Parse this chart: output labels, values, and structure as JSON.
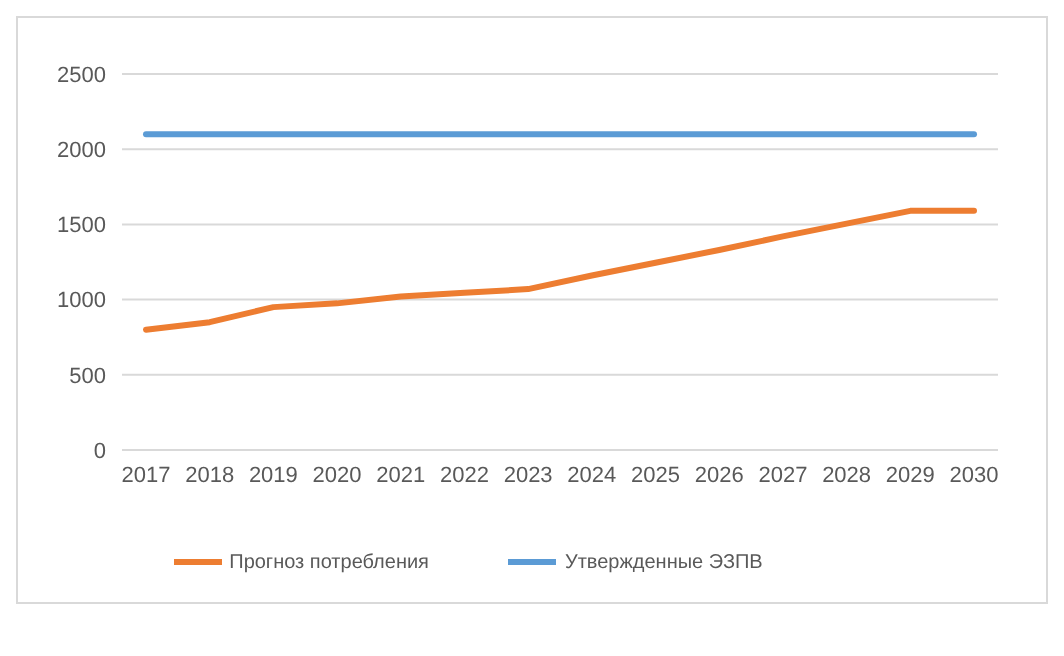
{
  "chart_data": {
    "type": "line",
    "categories": [
      "2017",
      "2018",
      "2019",
      "2020",
      "2021",
      "2022",
      "2023",
      "2024",
      "2025",
      "2026",
      "2027",
      "2028",
      "2029",
      "2030"
    ],
    "series": [
      {
        "name": "Утвержденные ЭЗПВ",
        "color": "#5b9bd5",
        "values": [
          2100,
          2100,
          2100,
          2100,
          2100,
          2100,
          2100,
          2100,
          2100,
          2100,
          2100,
          2100,
          2100,
          2100
        ]
      },
      {
        "name": "Прогноз потребления",
        "color": "#ed7d31",
        "values": [
          800,
          850,
          950,
          975,
          1020,
          1045,
          1070,
          1160,
          1245,
          1330,
          1420,
          1505,
          1590,
          1590
        ]
      }
    ],
    "ylim": [
      0,
      2500
    ],
    "yticks": [
      0,
      500,
      1000,
      1500,
      2000,
      2500
    ],
    "grid": "y",
    "legend": "bottom",
    "marker": "none",
    "line_style": "solid"
  }
}
